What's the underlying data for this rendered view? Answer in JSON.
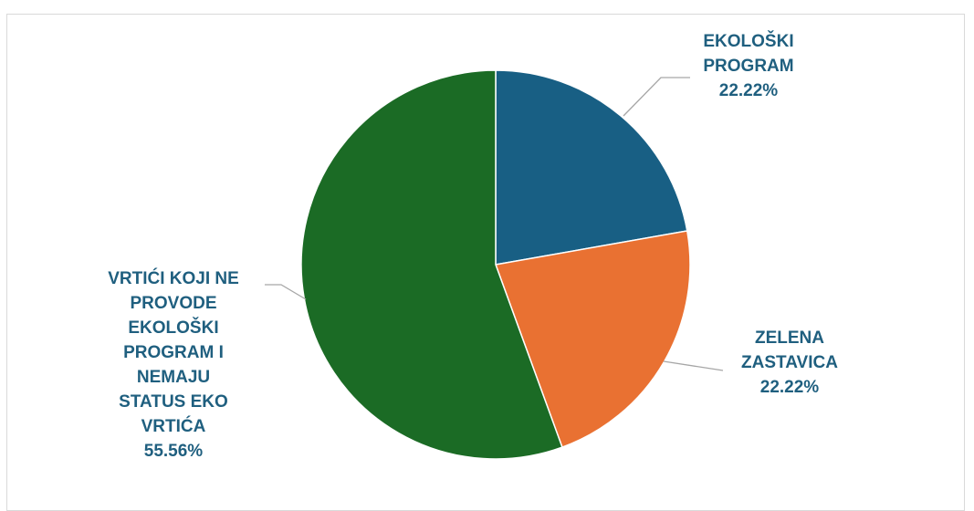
{
  "chart_data": {
    "type": "pie",
    "slices": [
      {
        "label": "EKOLOŠKI PROGRAM",
        "value": 22.22,
        "value_text": "22.22%",
        "color": "#185f84"
      },
      {
        "label": "ZELENA ZASTAVICA",
        "value": 22.22,
        "value_text": "22.22%",
        "color": "#e97132"
      },
      {
        "label": "VRTIĆI KOJI NE PROVODE EKOLOŠKI PROGRAM I NEMAJU STATUS EKO VRTIĆA",
        "value": 55.56,
        "value_text": "55.56%",
        "color": "#1b6b25"
      }
    ],
    "label_color": "#1f5f7f",
    "leader_color": "#a6a6a6",
    "start_angle_deg": 0,
    "direction": "clockwise",
    "legend": "none",
    "data_labels": [
      {
        "lines": [
          "EKOLOŠKI",
          "PROGRAM",
          "22.22%"
        ]
      },
      {
        "lines": [
          "ZELENA",
          "ZASTAVICA",
          "22.22%"
        ]
      },
      {
        "lines": [
          "VRTIĆI KOJI NE",
          "PROVODE",
          "EKOLOŠKI",
          "PROGRAM I",
          "NEMAJU",
          "STATUS EKO",
          "VRTIĆA",
          "55.56%"
        ]
      }
    ]
  }
}
